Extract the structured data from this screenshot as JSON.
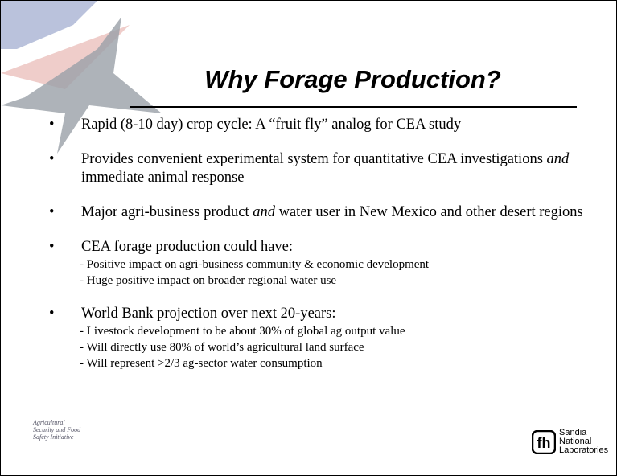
{
  "title": "Why Forage Production?",
  "bullets": [
    {
      "runs": [
        {
          "text": "Rapid (8-10 day) crop cycle:  A “fruit fly” analog for CEA study"
        }
      ],
      "subitems": []
    },
    {
      "runs": [
        {
          "text": "Provides convenient experimental system for quantitative CEA investigations "
        },
        {
          "text": "and",
          "italic": true
        },
        {
          "text": " immediate animal response"
        }
      ],
      "subitems": []
    },
    {
      "runs": [
        {
          "text": "Major agri-business product "
        },
        {
          "text": "and",
          "italic": true
        },
        {
          "text": " water user in New Mexico and other desert regions"
        }
      ],
      "subitems": []
    },
    {
      "runs": [
        {
          "text": "CEA forage production could have:"
        }
      ],
      "subitems": [
        "- Positive impact on agri-business community & economic development",
        "- Huge positive impact on broader regional water use"
      ]
    },
    {
      "runs": [
        {
          "text": "World Bank projection over next 20-years:"
        }
      ],
      "subitems": [
        "- Livestock development to be about 30% of global ag output value",
        "- Will directly use 80% of world’s agricultural land surface",
        "- Will represent >2/3 ag-sector water consumption"
      ]
    }
  ],
  "left_logo": [
    "Agricultural",
    "Security and Food",
    "Safety Initiative"
  ],
  "right_logo": [
    "Sandia",
    "National",
    "Laboratories"
  ]
}
